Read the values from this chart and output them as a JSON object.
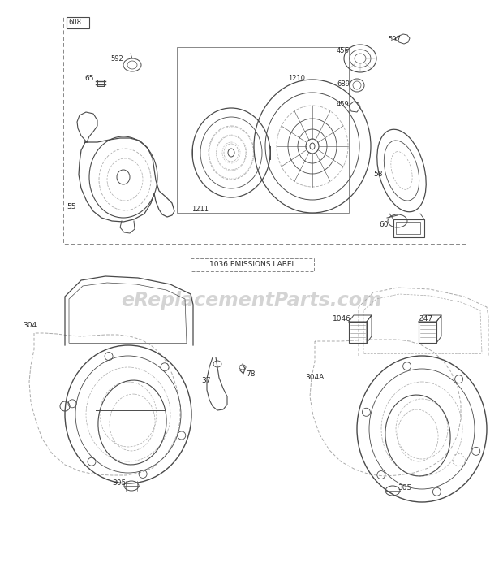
{
  "background_color": "#ffffff",
  "line_color": "#4a4a4a",
  "light_line_color": "#888888",
  "dashed_color": "#aaaaaa",
  "text_color": "#2a2a2a",
  "watermark_text": "eReplacementParts.com",
  "watermark_color": "#d0d0d0",
  "emissions_label": "1036 EMISSIONS LABEL",
  "top_box_label": "608",
  "fig_width": 6.2,
  "fig_height": 6.93,
  "dpi": 100
}
